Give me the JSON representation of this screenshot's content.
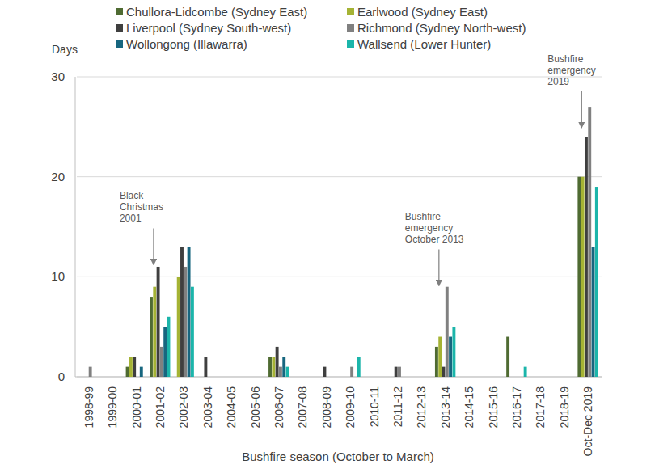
{
  "chart_data": {
    "type": "bar",
    "y_label": "Days",
    "x_label": "Bushfire season (October to March)",
    "categories": [
      "1998-99",
      "1999-00",
      "2000-01",
      "2001-02",
      "2002-03",
      "2003-04",
      "2004-05",
      "2005-06",
      "2006-07",
      "2007-08",
      "2008-09",
      "2009-10",
      "2010-11",
      "2011-12",
      "2012-13",
      "2013-14",
      "2014-15",
      "2015-16",
      "2016-17",
      "2017-18",
      "2018-19",
      "Oct-Dec 2019"
    ],
    "series": [
      {
        "name": "Chullora-Lidcombe (Sydney East)",
        "color": "#4f6b32",
        "values": [
          0,
          0,
          1,
          8,
          0,
          0,
          0,
          0,
          2,
          0,
          0,
          0,
          0,
          0,
          0,
          3,
          0,
          0,
          4,
          0,
          0,
          20
        ]
      },
      {
        "name": "Earlwood (Sydney East)",
        "color": "#a5b334",
        "values": [
          0,
          0,
          2,
          9,
          10,
          0,
          0,
          0,
          2,
          0,
          0,
          0,
          0,
          0,
          0,
          4,
          0,
          0,
          0,
          0,
          0,
          20
        ]
      },
      {
        "name": "Liverpool (Sydney South-west)",
        "color": "#3f3f3f",
        "values": [
          0,
          0,
          2,
          11,
          13,
          2,
          0,
          0,
          3,
          0,
          1,
          0,
          0,
          1,
          0,
          1,
          0,
          0,
          0,
          0,
          0,
          24
        ]
      },
      {
        "name": "Richmond (Sydney North-west)",
        "color": "#808080",
        "values": [
          1,
          0,
          0,
          3,
          11,
          0,
          0,
          0,
          1,
          0,
          0,
          1,
          0,
          1,
          0,
          9,
          0,
          0,
          0,
          0,
          0,
          27
        ]
      },
      {
        "name": "Wollongong (Illawarra)",
        "color": "#17667f",
        "values": [
          0,
          0,
          1,
          5,
          13,
          0,
          0,
          0,
          2,
          0,
          0,
          0,
          0,
          0,
          0,
          4,
          0,
          0,
          0,
          0,
          0,
          13
        ]
      },
      {
        "name": "Wallsend (Lower Hunter)",
        "color": "#1bb5aa",
        "values": [
          0,
          0,
          0,
          6,
          9,
          0,
          0,
          0,
          1,
          0,
          0,
          2,
          0,
          0,
          0,
          5,
          0,
          0,
          1,
          0,
          0,
          19
        ]
      }
    ],
    "annotations": [
      {
        "lines": [
          "Black",
          "Christmas",
          "2001"
        ],
        "category": "2001-02",
        "y": 11.2
      },
      {
        "lines": [
          "Bushfire",
          "emergency",
          "October 2013"
        ],
        "category": "2013-14",
        "y": 9.1
      },
      {
        "lines": [
          "Bushfire",
          "emergency",
          "2019"
        ],
        "category": "Oct-Dec 2019",
        "y": 24.9
      }
    ],
    "ylim": [
      0,
      30
    ],
    "yticks": [
      0,
      10,
      20,
      30
    ],
    "grid": true,
    "legend": "top"
  }
}
